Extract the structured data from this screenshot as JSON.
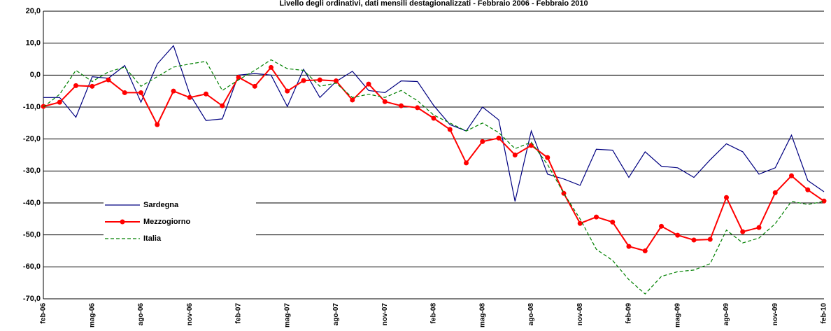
{
  "chart_data": {
    "type": "line",
    "title": "Livello degli ordinativi, dati mensili destagionalizzati - Febbraio 2006 - Febbraio 2010",
    "categories": [
      "feb-06",
      null,
      null,
      "mag-06",
      null,
      null,
      "ago-06",
      null,
      null,
      "nov-06",
      null,
      null,
      "feb-07",
      null,
      null,
      "mag-07",
      null,
      null,
      "ago-07",
      null,
      null,
      "nov-07",
      null,
      null,
      "feb-08",
      null,
      null,
      "mag-08",
      null,
      null,
      "ago-08",
      null,
      null,
      "nov-08",
      null,
      null,
      "feb-09",
      null,
      null,
      "mag-09",
      null,
      null,
      "ago-09",
      null,
      null,
      "nov-09",
      null,
      null,
      "feb-10"
    ],
    "series": [
      {
        "name": "Sardegna",
        "color": "#000080",
        "style": "solid",
        "markers": false,
        "values": [
          -7,
          -7,
          -13.2,
          -0.5,
          -1,
          3,
          -8.5,
          3.5,
          9.2,
          -6,
          -14.2,
          -13.7,
          0,
          0.5,
          0,
          -9.8,
          1.8,
          -7,
          -2,
          1.2,
          -4.8,
          -5.5,
          -1.8,
          -2,
          -9.5,
          -15.5,
          -17.5,
          -10,
          -14,
          -39.5,
          -17.5,
          -31,
          -32.5,
          -34.5,
          -23.2,
          -23.5,
          -32,
          -24,
          -28.5,
          -29,
          -32,
          -26.5,
          -21.5,
          -24,
          -31,
          -29,
          -18.8,
          -33,
          -36.5
        ]
      },
      {
        "name": "Mezzogiorno",
        "color": "#ff0000",
        "style": "solid",
        "markers": true,
        "values": [
          -9.8,
          -8.5,
          -3.3,
          -3.5,
          -1.5,
          -5.5,
          -5.5,
          -15.5,
          -5,
          -7,
          -5.9,
          -9.6,
          -0.7,
          -3.5,
          2.4,
          -5,
          -1.7,
          -1.5,
          -1.8,
          -7.8,
          -2.8,
          -8.3,
          -9.6,
          -10.2,
          -13.5,
          -17,
          -27.5,
          -20.8,
          -19.7,
          -25,
          -22,
          -25.8,
          -37,
          -46.4,
          -44.4,
          -46,
          -53.6,
          -55,
          -47.3,
          -50.1,
          -51.6,
          -51.4,
          -38.3,
          -49,
          -47.7,
          -36.8,
          -31.5,
          -35.9,
          -39.4
        ]
      },
      {
        "name": "Italia",
        "color": "#008000",
        "style": "dashed",
        "markers": false,
        "values": [
          -10,
          -6,
          1.5,
          -2,
          1,
          2.5,
          -3.5,
          -0.5,
          2.5,
          3.5,
          4.3,
          -4.8,
          -1.5,
          1.5,
          4.8,
          2,
          1.5,
          -3.5,
          -2.5,
          -7,
          -6,
          -7,
          -4.8,
          -8,
          -12.5,
          -15,
          -17.5,
          -15,
          -18,
          -23,
          -21,
          -28,
          -37,
          -45,
          -54.5,
          -58,
          -64,
          -68.5,
          -63,
          -61.5,
          -61,
          -59,
          -48.5,
          -52.5,
          -51,
          -46.5,
          -39.5,
          -40.5,
          -39.5
        ]
      }
    ],
    "ylim": [
      -70,
      20
    ],
    "yticks": [
      {
        "value": -70,
        "label": "-70,0"
      },
      {
        "value": -60,
        "label": "-60,0"
      },
      {
        "value": -50,
        "label": "-50,0"
      },
      {
        "value": -40,
        "label": "-40,0"
      },
      {
        "value": -30,
        "label": "-30,0"
      },
      {
        "value": -20,
        "label": "-20,0"
      },
      {
        "value": -10,
        "label": "-10,0"
      },
      {
        "value": 0,
        "label": "0,0"
      },
      {
        "value": 10,
        "label": "10,0"
      },
      {
        "value": 20,
        "label": "20,0"
      }
    ],
    "grid": true,
    "legend": "left"
  }
}
